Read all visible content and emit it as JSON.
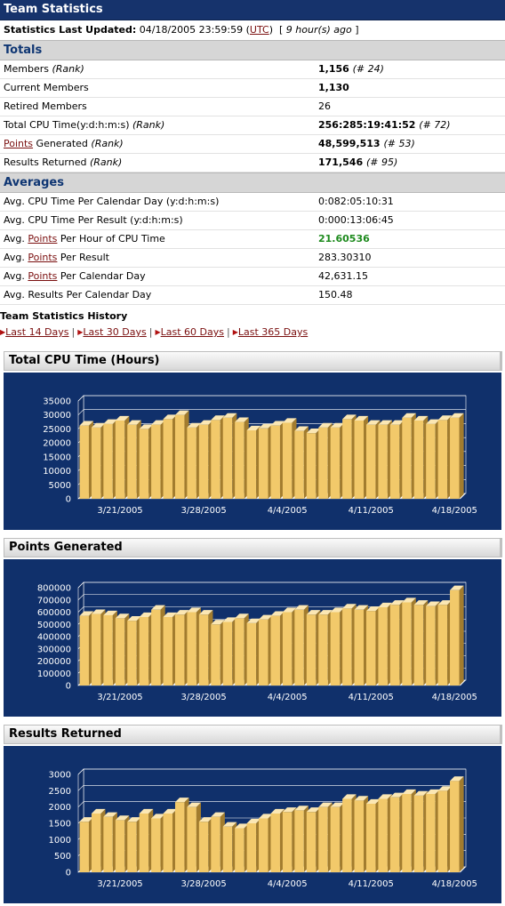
{
  "header": {
    "title": "Team Statistics"
  },
  "updated": {
    "label": "Statistics Last Updated:",
    "datetime": "04/18/2005 23:59:59",
    "tz_link": "UTC",
    "ago": "9 hour(s) ago"
  },
  "totals": {
    "heading": "Totals",
    "members": {
      "label": "Members",
      "rank_label": "(Rank)",
      "value": "1,156",
      "rank": "(# 24)"
    },
    "current_members": {
      "label": "Current Members",
      "value": "1,130"
    },
    "retired_members": {
      "label": "Retired Members",
      "value": "26"
    },
    "cpu_time": {
      "label": "Total CPU Time(y:d:h:m:s)",
      "rank_label": "(Rank)",
      "value": "256:285:19:41:52",
      "rank": "(# 72)"
    },
    "points": {
      "link": "Points",
      "label": " Generated",
      "rank_label": "(Rank)",
      "value": "48,599,513",
      "rank": "(# 53)"
    },
    "results": {
      "label": "Results Returned",
      "rank_label": "(Rank)",
      "value": "171,546",
      "rank": "(# 95)"
    }
  },
  "averages": {
    "heading": "Averages",
    "cpu_per_day": {
      "label": "Avg. CPU Time Per Calendar Day (y:d:h:m:s)",
      "value": "0:082:05:10:31"
    },
    "cpu_per_result": {
      "label": "Avg. CPU Time Per Result (y:d:h:m:s)",
      "value": "0:000:13:06:45"
    },
    "points_per_hour": {
      "prefix": "Avg. ",
      "link": "Points",
      "suffix": " Per Hour of CPU Time",
      "value": "21.60536"
    },
    "points_per_result": {
      "prefix": "Avg. ",
      "link": "Points",
      "suffix": " Per Result",
      "value": "283.30310"
    },
    "points_per_day": {
      "prefix": "Avg. ",
      "link": "Points",
      "suffix": " Per Calendar Day",
      "value": "42,631.15"
    },
    "results_per_day": {
      "label": "Avg. Results Per Calendar Day",
      "value": "150.48"
    }
  },
  "history": {
    "title": "Team Statistics History",
    "links": [
      "Last 14 Days",
      "Last 30 Days",
      "Last 60 Days",
      "Last 365 Days"
    ],
    "separator": "|"
  },
  "chart_data": [
    {
      "type": "bar",
      "title": "Total CPU Time (Hours)",
      "colors": {
        "background": "#10306b",
        "bar": "#f2c96a",
        "bar_side": "#a27c2e"
      },
      "ylim": [
        0,
        35000
      ],
      "yticks": [
        0,
        5000,
        10000,
        15000,
        20000,
        25000,
        30000,
        35000
      ],
      "xtick_labels": [
        "3/21/2005",
        "3/28/2005",
        "4/4/2005",
        "4/11/2005",
        "4/18/2005"
      ],
      "xtick_positions": [
        3,
        10,
        17,
        24,
        31
      ],
      "categories": [
        "3/18/2005",
        "3/19/2005",
        "3/20/2005",
        "3/21/2005",
        "3/22/2005",
        "3/23/2005",
        "3/24/2005",
        "3/25/2005",
        "3/26/2005",
        "3/27/2005",
        "3/28/2005",
        "3/29/2005",
        "3/30/2005",
        "3/31/2005",
        "4/1/2005",
        "4/2/2005",
        "4/3/2005",
        "4/4/2005",
        "4/5/2005",
        "4/6/2005",
        "4/7/2005",
        "4/8/2005",
        "4/9/2005",
        "4/10/2005",
        "4/11/2005",
        "4/12/2005",
        "4/13/2005",
        "4/14/2005",
        "4/15/2005",
        "4/16/2005",
        "4/17/2005",
        "4/18/2005"
      ],
      "values": [
        26200,
        25500,
        26800,
        28000,
        26500,
        25000,
        26500,
        28500,
        30000,
        25500,
        26500,
        28200,
        29000,
        27500,
        24500,
        25200,
        26200,
        27200,
        24300,
        23500,
        25500,
        25500,
        28500,
        28000,
        26500,
        26500,
        26500,
        29000,
        28000,
        26800,
        28200,
        29000
      ]
    },
    {
      "type": "bar",
      "title": "Points Generated",
      "colors": {
        "background": "#10306b",
        "bar": "#f2c96a",
        "bar_side": "#a27c2e"
      },
      "ylim": [
        0,
        800000
      ],
      "yticks": [
        0,
        100000,
        200000,
        300000,
        400000,
        500000,
        600000,
        700000,
        800000
      ],
      "xtick_labels": [
        "3/21/2005",
        "3/28/2005",
        "4/4/2005",
        "4/11/2005",
        "4/18/2005"
      ],
      "xtick_positions": [
        3,
        10,
        17,
        24,
        31
      ],
      "categories": [
        "3/18/2005",
        "3/19/2005",
        "3/20/2005",
        "3/21/2005",
        "3/22/2005",
        "3/23/2005",
        "3/24/2005",
        "3/25/2005",
        "3/26/2005",
        "3/27/2005",
        "3/28/2005",
        "3/29/2005",
        "3/30/2005",
        "3/31/2005",
        "4/1/2005",
        "4/2/2005",
        "4/3/2005",
        "4/4/2005",
        "4/5/2005",
        "4/6/2005",
        "4/7/2005",
        "4/8/2005",
        "4/9/2005",
        "4/10/2005",
        "4/11/2005",
        "4/12/2005",
        "4/13/2005",
        "4/14/2005",
        "4/15/2005",
        "4/16/2005",
        "4/17/2005",
        "4/18/2005"
      ],
      "values": [
        570000,
        585000,
        575000,
        550000,
        530000,
        560000,
        620000,
        560000,
        580000,
        600000,
        580000,
        500000,
        520000,
        550000,
        510000,
        540000,
        570000,
        600000,
        620000,
        580000,
        580000,
        600000,
        630000,
        620000,
        610000,
        640000,
        660000,
        680000,
        660000,
        650000,
        660000,
        780000
      ]
    },
    {
      "type": "bar",
      "title": "Results Returned",
      "colors": {
        "background": "#10306b",
        "bar": "#f2c96a",
        "bar_side": "#a27c2e"
      },
      "ylim": [
        0,
        3000
      ],
      "yticks": [
        0,
        500,
        1000,
        1500,
        2000,
        2500,
        3000
      ],
      "xtick_labels": [
        "3/21/2005",
        "3/28/2005",
        "4/4/2005",
        "4/11/2005",
        "4/18/2005"
      ],
      "xtick_positions": [
        3,
        10,
        17,
        24,
        31
      ],
      "categories": [
        "3/18/2005",
        "3/19/2005",
        "3/20/2005",
        "3/21/2005",
        "3/22/2005",
        "3/23/2005",
        "3/24/2005",
        "3/25/2005",
        "3/26/2005",
        "3/27/2005",
        "3/28/2005",
        "3/29/2005",
        "3/30/2005",
        "3/31/2005",
        "4/1/2005",
        "4/2/2005",
        "4/3/2005",
        "4/4/2005",
        "4/5/2005",
        "4/6/2005",
        "4/7/2005",
        "4/8/2005",
        "4/9/2005",
        "4/10/2005",
        "4/11/2005",
        "4/12/2005",
        "4/13/2005",
        "4/14/2005",
        "4/15/2005",
        "4/16/2005",
        "4/17/2005",
        "4/18/2005"
      ],
      "values": [
        1550,
        1800,
        1700,
        1600,
        1550,
        1800,
        1650,
        1800,
        2150,
        2000,
        1550,
        1700,
        1400,
        1350,
        1500,
        1650,
        1800,
        1850,
        1900,
        1850,
        2000,
        2000,
        2250,
        2200,
        2100,
        2250,
        2300,
        2400,
        2350,
        2400,
        2500,
        2800
      ]
    }
  ]
}
